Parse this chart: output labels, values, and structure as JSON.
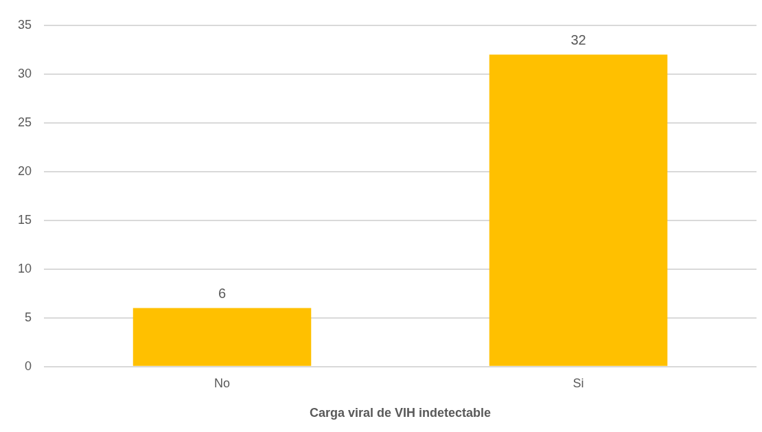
{
  "chart_data": {
    "type": "bar",
    "xlabel": "Carga viral de VIH indetectable",
    "categories": [
      "No",
      "Si"
    ],
    "values": [
      6,
      32
    ],
    "color": "#ffc000",
    "ylim": [
      0,
      35
    ],
    "yticks": [
      0,
      5,
      10,
      15,
      20,
      25,
      30,
      35
    ],
    "grid": "y",
    "data_labels": true,
    "legend": false
  }
}
